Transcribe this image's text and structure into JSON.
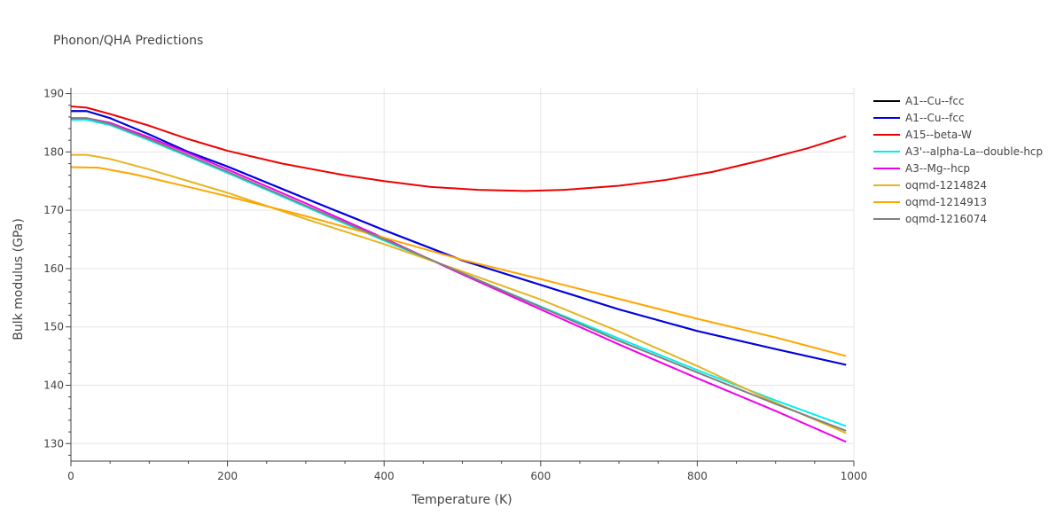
{
  "chart_data": {
    "type": "line",
    "title": "Phonon/QHA Predictions",
    "xlabel": "Temperature (K)",
    "ylabel": "Bulk modulus (GPa)",
    "xlim": [
      0,
      1000
    ],
    "ylim": [
      127,
      191
    ],
    "x_ticks": [
      0,
      200,
      400,
      600,
      800,
      1000
    ],
    "y_ticks": [
      130,
      140,
      150,
      160,
      170,
      180,
      190
    ],
    "grid": true,
    "legend_position": "right",
    "series": [
      {
        "name": "A1--Cu--fcc",
        "color": "#000000",
        "points": [
          [
            0,
            187.0
          ],
          [
            20,
            187.0
          ],
          [
            50,
            185.8
          ],
          [
            100,
            183.0
          ],
          [
            150,
            180.0
          ],
          [
            200,
            177.5
          ],
          [
            300,
            172.0
          ],
          [
            400,
            166.6
          ],
          [
            500,
            161.4
          ],
          [
            600,
            157.2
          ],
          [
            700,
            153.0
          ],
          [
            800,
            149.3
          ],
          [
            900,
            146.2
          ],
          [
            990,
            143.5
          ]
        ]
      },
      {
        "name": "A1--Cu--fcc",
        "color": "#0000ee",
        "points": [
          [
            0,
            187.0
          ],
          [
            20,
            187.0
          ],
          [
            50,
            185.8
          ],
          [
            100,
            183.0
          ],
          [
            150,
            180.0
          ],
          [
            200,
            177.5
          ],
          [
            300,
            172.0
          ],
          [
            400,
            166.6
          ],
          [
            500,
            161.4
          ],
          [
            600,
            157.2
          ],
          [
            700,
            153.0
          ],
          [
            800,
            149.3
          ],
          [
            900,
            146.2
          ],
          [
            990,
            143.5
          ]
        ]
      },
      {
        "name": "A15--beta-W",
        "color": "#ee0000",
        "points": [
          [
            0,
            187.8
          ],
          [
            20,
            187.6
          ],
          [
            50,
            186.5
          ],
          [
            100,
            184.5
          ],
          [
            150,
            182.2
          ],
          [
            200,
            180.2
          ],
          [
            270,
            178.0
          ],
          [
            350,
            176.0
          ],
          [
            400,
            175.0
          ],
          [
            460,
            174.0
          ],
          [
            520,
            173.5
          ],
          [
            580,
            173.3
          ],
          [
            630,
            173.5
          ],
          [
            700,
            174.2
          ],
          [
            760,
            175.2
          ],
          [
            820,
            176.6
          ],
          [
            880,
            178.5
          ],
          [
            940,
            180.6
          ],
          [
            990,
            182.7
          ]
        ]
      },
      {
        "name": "A3'--alpha-La--double-hcp",
        "color": "#00eeee",
        "points": [
          [
            0,
            185.5
          ],
          [
            20,
            185.5
          ],
          [
            50,
            184.6
          ],
          [
            100,
            182.0
          ],
          [
            150,
            179.2
          ],
          [
            200,
            176.4
          ],
          [
            300,
            170.6
          ],
          [
            400,
            164.8
          ],
          [
            500,
            159.2
          ],
          [
            600,
            153.5
          ],
          [
            700,
            148.0
          ],
          [
            800,
            142.6
          ],
          [
            900,
            137.4
          ],
          [
            990,
            133.0
          ]
        ]
      },
      {
        "name": "A3--Mg--hcp",
        "color": "#ee00ee",
        "points": [
          [
            0,
            185.8
          ],
          [
            20,
            185.8
          ],
          [
            50,
            185.0
          ],
          [
            100,
            182.5
          ],
          [
            150,
            179.8
          ],
          [
            200,
            177.0
          ],
          [
            300,
            171.2
          ],
          [
            400,
            165.2
          ],
          [
            500,
            159.0
          ],
          [
            600,
            153.0
          ],
          [
            700,
            147.0
          ],
          [
            800,
            141.2
          ],
          [
            900,
            135.6
          ],
          [
            990,
            130.3
          ]
        ]
      },
      {
        "name": "oqmd-1214824",
        "color": "#e6b422",
        "points": [
          [
            0,
            179.5
          ],
          [
            20,
            179.5
          ],
          [
            50,
            178.8
          ],
          [
            100,
            177.0
          ],
          [
            150,
            175.0
          ],
          [
            200,
            173.0
          ],
          [
            300,
            168.5
          ],
          [
            400,
            164.2
          ],
          [
            500,
            159.5
          ],
          [
            600,
            154.7
          ],
          [
            700,
            149.2
          ],
          [
            800,
            143.3
          ],
          [
            900,
            137.0
          ],
          [
            990,
            131.8
          ]
        ]
      },
      {
        "name": "oqmd-1214913",
        "color": "#ffa500",
        "points": [
          [
            0,
            177.4
          ],
          [
            35,
            177.3
          ],
          [
            80,
            176.2
          ],
          [
            150,
            174.0
          ],
          [
            200,
            172.4
          ],
          [
            300,
            169.0
          ],
          [
            400,
            165.3
          ],
          [
            500,
            161.5
          ],
          [
            600,
            158.2
          ],
          [
            700,
            154.8
          ],
          [
            800,
            151.4
          ],
          [
            900,
            148.2
          ],
          [
            990,
            145.0
          ]
        ]
      },
      {
        "name": "oqmd-1216074",
        "color": "#808080",
        "points": [
          [
            0,
            185.8
          ],
          [
            20,
            185.8
          ],
          [
            50,
            184.8
          ],
          [
            100,
            182.2
          ],
          [
            150,
            179.4
          ],
          [
            200,
            176.6
          ],
          [
            300,
            170.8
          ],
          [
            400,
            165.0
          ],
          [
            500,
            159.2
          ],
          [
            600,
            153.4
          ],
          [
            700,
            147.6
          ],
          [
            800,
            142.2
          ],
          [
            900,
            136.8
          ],
          [
            990,
            132.2
          ]
        ]
      }
    ]
  }
}
